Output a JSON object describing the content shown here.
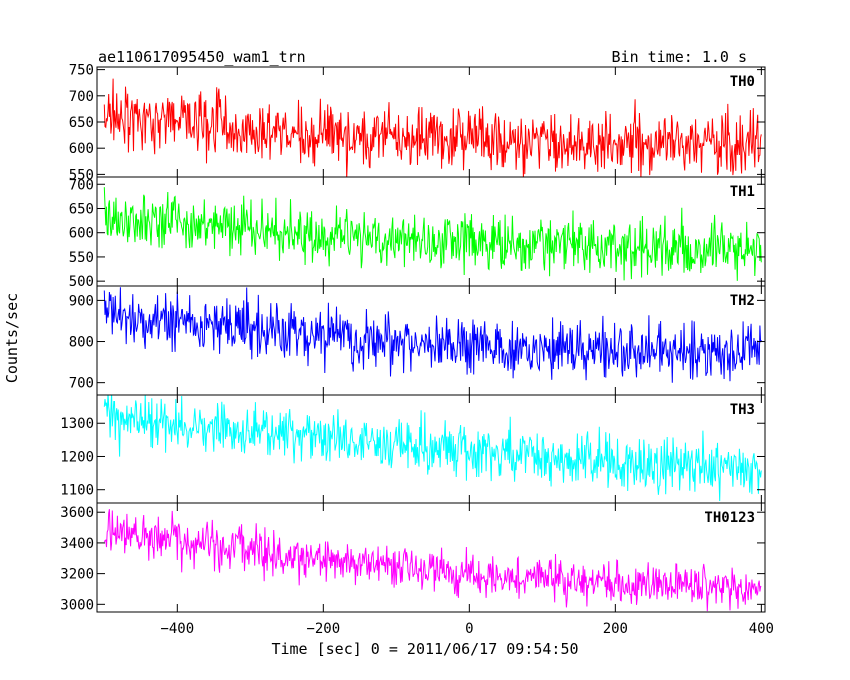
{
  "header": {
    "left_title": "ae110617095450_wam1_trn",
    "right_title": "Bin time: 1.0 s"
  },
  "axes": {
    "xlabel": "Time [sec] 0 = 2011/06/17 09:54:50",
    "ylabel": "Counts/sec"
  },
  "chart_data": {
    "type": "line",
    "title": "ae110617095450_wam1_trn",
    "subtitle": "Bin time: 1.0 s",
    "xlabel": "Time [sec] 0 = 2011/06/17 09:54:50",
    "ylabel": "Counts/sec",
    "xlim": [
      -510,
      405
    ],
    "x_ticks": [
      -400,
      -200,
      0,
      200,
      400
    ],
    "x_range_data": [
      -500,
      400
    ],
    "panels": [
      {
        "name": "TH0",
        "color": "#ff0000",
        "ylim": [
          545,
          755
        ],
        "yticks": [
          550,
          600,
          650,
          700,
          750
        ],
        "trend": [
          [
            -500,
            665
          ],
          [
            -330,
            650
          ],
          [
            -320,
            630
          ],
          [
            -200,
            625
          ],
          [
            0,
            615
          ],
          [
            200,
            610
          ],
          [
            400,
            610
          ]
        ],
        "noise_sd": 28
      },
      {
        "name": "TH1",
        "color": "#00ff00",
        "ylim": [
          490,
          715
        ],
        "yticks": [
          500,
          550,
          600,
          650,
          700
        ],
        "trend": [
          [
            -500,
            630
          ],
          [
            -300,
            610
          ],
          [
            -200,
            595
          ],
          [
            0,
            580
          ],
          [
            200,
            570
          ],
          [
            400,
            565
          ]
        ],
        "noise_sd": 28
      },
      {
        "name": "TH2",
        "color": "#0000ff",
        "ylim": [
          670,
          935
        ],
        "yticks": [
          700,
          800,
          900
        ],
        "trend": [
          [
            -500,
            860
          ],
          [
            -300,
            830
          ],
          [
            -100,
            800
          ],
          [
            100,
            785
          ],
          [
            300,
            775
          ],
          [
            400,
            770
          ]
        ],
        "noise_sd": 33
      },
      {
        "name": "TH3",
        "color": "#00ffff",
        "ylim": [
          1060,
          1385
        ],
        "yticks": [
          1100,
          1200,
          1300
        ],
        "trend": [
          [
            -500,
            1320
          ],
          [
            -300,
            1275
          ],
          [
            -100,
            1240
          ],
          [
            100,
            1200
          ],
          [
            300,
            1170
          ],
          [
            400,
            1165
          ]
        ],
        "noise_sd": 38
      },
      {
        "name": "TH0123",
        "color": "#ff00ff",
        "ylim": [
          2950,
          3660
        ],
        "yticks": [
          3000,
          3200,
          3400,
          3600
        ],
        "trend": [
          [
            -500,
            3480
          ],
          [
            -300,
            3360
          ],
          [
            -200,
            3270
          ],
          [
            0,
            3200
          ],
          [
            200,
            3130
          ],
          [
            400,
            3120
          ]
        ],
        "noise_sd": 70
      }
    ]
  }
}
